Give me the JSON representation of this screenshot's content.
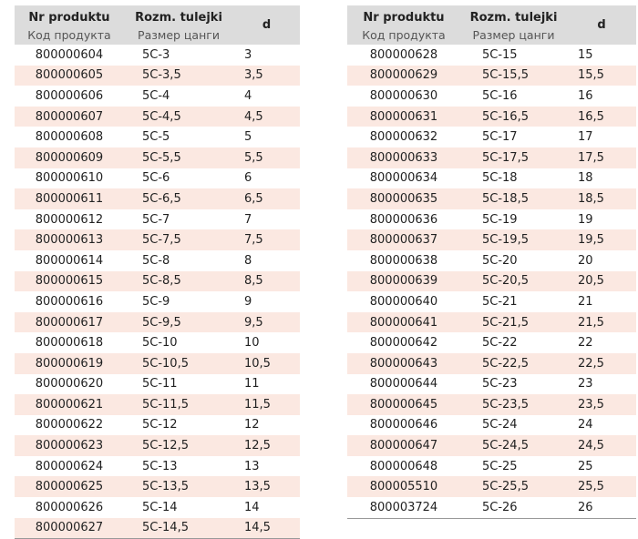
{
  "headers": {
    "code_pl": "Nr produktu",
    "code_ru": "Код продукта",
    "size_pl": "Rozm. tulejki",
    "size_ru": "Размер цанги",
    "d": "d"
  },
  "left_rows": [
    {
      "code": "800000604",
      "size": "5C-3",
      "d": "3"
    },
    {
      "code": "800000605",
      "size": "5C-3,5",
      "d": "3,5"
    },
    {
      "code": "800000606",
      "size": "5C-4",
      "d": "4"
    },
    {
      "code": "800000607",
      "size": "5C-4,5",
      "d": "4,5"
    },
    {
      "code": "800000608",
      "size": "5C-5",
      "d": "5"
    },
    {
      "code": "800000609",
      "size": "5C-5,5",
      "d": "5,5"
    },
    {
      "code": "800000610",
      "size": "5C-6",
      "d": "6"
    },
    {
      "code": "800000611",
      "size": "5C-6,5",
      "d": "6,5"
    },
    {
      "code": "800000612",
      "size": "5C-7",
      "d": "7"
    },
    {
      "code": "800000613",
      "size": "5C-7,5",
      "d": "7,5"
    },
    {
      "code": "800000614",
      "size": "5C-8",
      "d": "8"
    },
    {
      "code": "800000615",
      "size": "5C-8,5",
      "d": "8,5"
    },
    {
      "code": "800000616",
      "size": "5C-9",
      "d": "9"
    },
    {
      "code": "800000617",
      "size": "5C-9,5",
      "d": "9,5"
    },
    {
      "code": "800000618",
      "size": "5C-10",
      "d": "10"
    },
    {
      "code": "800000619",
      "size": "5C-10,5",
      "d": "10,5"
    },
    {
      "code": "800000620",
      "size": "5C-11",
      "d": "11"
    },
    {
      "code": "800000621",
      "size": "5C-11,5",
      "d": "11,5"
    },
    {
      "code": "800000622",
      "size": "5C-12",
      "d": "12"
    },
    {
      "code": "800000623",
      "size": "5C-12,5",
      "d": "12,5"
    },
    {
      "code": "800000624",
      "size": "5C-13",
      "d": "13"
    },
    {
      "code": "800000625",
      "size": "5C-13,5",
      "d": "13,5"
    },
    {
      "code": "800000626",
      "size": "5C-14",
      "d": "14"
    },
    {
      "code": "800000627",
      "size": "5C-14,5",
      "d": "14,5"
    }
  ],
  "right_rows": [
    {
      "code": "800000628",
      "size": "5C-15",
      "d": "15"
    },
    {
      "code": "800000629",
      "size": "5C-15,5",
      "d": "15,5"
    },
    {
      "code": "800000630",
      "size": "5C-16",
      "d": "16"
    },
    {
      "code": "800000631",
      "size": "5C-16,5",
      "d": "16,5"
    },
    {
      "code": "800000632",
      "size": "5C-17",
      "d": "17"
    },
    {
      "code": "800000633",
      "size": "5C-17,5",
      "d": "17,5"
    },
    {
      "code": "800000634",
      "size": "5C-18",
      "d": "18"
    },
    {
      "code": "800000635",
      "size": "5C-18,5",
      "d": "18,5"
    },
    {
      "code": "800000636",
      "size": "5C-19",
      "d": "19"
    },
    {
      "code": "800000637",
      "size": "5C-19,5",
      "d": "19,5"
    },
    {
      "code": "800000638",
      "size": "5C-20",
      "d": "20"
    },
    {
      "code": "800000639",
      "size": "5C-20,5",
      "d": "20,5"
    },
    {
      "code": "800000640",
      "size": "5C-21",
      "d": "21"
    },
    {
      "code": "800000641",
      "size": "5C-21,5",
      "d": "21,5"
    },
    {
      "code": "800000642",
      "size": "5C-22",
      "d": "22"
    },
    {
      "code": "800000643",
      "size": "5C-22,5",
      "d": "22,5"
    },
    {
      "code": "800000644",
      "size": "5C-23",
      "d": "23"
    },
    {
      "code": "800000645",
      "size": "5C-23,5",
      "d": "23,5"
    },
    {
      "code": "800000646",
      "size": "5C-24",
      "d": "24"
    },
    {
      "code": "800000647",
      "size": "5C-24,5",
      "d": "24,5"
    },
    {
      "code": "800000648",
      "size": "5C-25",
      "d": "25"
    },
    {
      "code": "800005510",
      "size": "5C-25,5",
      "d": "25,5"
    },
    {
      "code": "800003724",
      "size": "5C-26",
      "d": "26"
    }
  ],
  "colors": {
    "header_bg": "#dcdcdc",
    "stripe_bg": "#fbe8e1"
  }
}
